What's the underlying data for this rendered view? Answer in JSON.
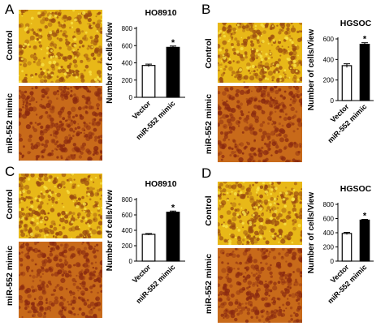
{
  "figure": {
    "panels": [
      {
        "letter": "A",
        "row_labels": [
          "Control",
          "miR-552 mimic"
        ],
        "micro_seed": 11
      },
      {
        "letter": "B",
        "row_labels": [
          "Control",
          "miR-552 mimic"
        ],
        "micro_seed": 23
      },
      {
        "letter": "C",
        "row_labels": [
          "Control",
          "miR-552 mimic"
        ],
        "micro_seed": 37
      },
      {
        "letter": "D",
        "row_labels": [
          "Control",
          "miR-552 mimic"
        ],
        "micro_seed": 51
      }
    ],
    "colors": {
      "control_bg": "#e8b818",
      "control_cell": "#9a4a10",
      "mimic_bg": "#c86a1a",
      "mimic_cell": "#8a2a10",
      "bar_vector": "#ffffff",
      "bar_mimic": "#000000"
    },
    "icons": {
      "micro_image": "microscopy-field-image"
    }
  },
  "chart_data": [
    {
      "type": "bar",
      "title": "HO8910",
      "ylabel": "Number of cells/View",
      "categories": [
        "Vector",
        "miR-552 mimic"
      ],
      "values": [
        370,
        580
      ],
      "errors": [
        15,
        15
      ],
      "ylim": [
        0,
        800
      ],
      "yticks": [
        0,
        200,
        400,
        600,
        800
      ],
      "significance": [
        "",
        "*"
      ]
    },
    {
      "type": "bar",
      "title": "HGSOC",
      "ylabel": "Number of cells/View",
      "categories": [
        "Vector",
        "miR-552 mimic"
      ],
      "values": [
        340,
        548
      ],
      "errors": [
        18,
        15
      ],
      "ylim": [
        0,
        600
      ],
      "yticks": [
        0,
        200,
        400,
        600
      ],
      "significance": [
        "",
        "*"
      ]
    },
    {
      "type": "bar",
      "title": "HO8910",
      "ylabel": "Number of cells/View",
      "categories": [
        "Vector",
        "miR-552 mimic"
      ],
      "values": [
        348,
        635
      ],
      "errors": [
        10,
        15
      ],
      "ylim": [
        0,
        800
      ],
      "yticks": [
        0,
        200,
        400,
        600,
        800
      ],
      "significance": [
        "",
        "*"
      ]
    },
    {
      "type": "bar",
      "title": "HGSOC",
      "ylabel": "Number of cells/View",
      "categories": [
        "Vector",
        "miR-552 mimic"
      ],
      "values": [
        390,
        578
      ],
      "errors": [
        15,
        10
      ],
      "ylim": [
        0,
        800
      ],
      "yticks": [
        0,
        200,
        400,
        600,
        800
      ],
      "significance": [
        "",
        "*"
      ]
    }
  ]
}
